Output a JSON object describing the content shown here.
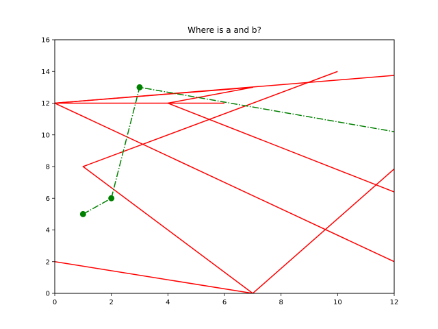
{
  "chart_data": {
    "type": "line",
    "title": "Where is a and b?",
    "xlabel": "",
    "ylabel": "",
    "xlim": [
      0,
      12
    ],
    "ylim": [
      0,
      16
    ],
    "xticks": [
      0,
      2,
      4,
      6,
      8,
      10,
      12
    ],
    "yticks": [
      0,
      2,
      4,
      6,
      8,
      10,
      12,
      14,
      16
    ],
    "grid": false,
    "series": [
      {
        "color": "#ff0000",
        "style": "solid",
        "marker": "none",
        "points": [
          [
            10,
            14
          ],
          [
            1,
            8
          ],
          [
            7,
            0
          ],
          [
            12,
            7.85
          ]
        ]
      },
      {
        "color": "#ff0000",
        "style": "solid",
        "marker": "none",
        "points": [
          [
            0,
            2
          ],
          [
            7,
            0
          ]
        ]
      },
      {
        "color": "#ff0000",
        "style": "solid",
        "marker": "none",
        "points": [
          [
            12,
            2
          ],
          [
            0,
            12
          ],
          [
            7,
            13
          ],
          [
            4,
            12
          ],
          [
            12,
            6.4
          ]
        ]
      },
      {
        "color": "#ff0000",
        "style": "solid",
        "marker": "none",
        "points": [
          [
            0,
            12
          ],
          [
            6,
            12
          ]
        ]
      },
      {
        "color": "#ff0000",
        "style": "solid",
        "marker": "none",
        "points": [
          [
            0,
            12
          ],
          [
            12,
            13.75
          ]
        ]
      },
      {
        "color": "#008000",
        "style": "dashdot",
        "marker": "circle",
        "points": [
          [
            1,
            5
          ],
          [
            2,
            6
          ],
          [
            3,
            13
          ],
          [
            12,
            10.2
          ]
        ],
        "marker_points": [
          [
            1,
            5
          ],
          [
            2,
            6
          ],
          [
            3,
            13
          ]
        ]
      }
    ]
  }
}
